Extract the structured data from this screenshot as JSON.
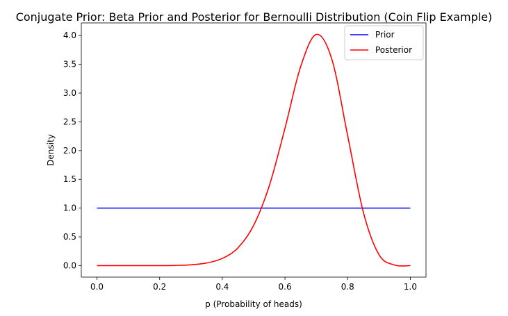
{
  "chart_data": {
    "type": "line",
    "title": "Conjugate Prior: Beta Prior and Posterior for Bernoulli Distribution (Coin Flip Example)",
    "xlabel": "p (Probability of heads)",
    "ylabel": "Density",
    "xlim": [
      -0.05,
      1.05
    ],
    "ylim": [
      -0.2,
      4.22
    ],
    "xticks": [
      0.0,
      0.2,
      0.4,
      0.6,
      0.8,
      1.0
    ],
    "xtick_labels": [
      "0.0",
      "0.2",
      "0.4",
      "0.6",
      "0.8",
      "1.0"
    ],
    "yticks": [
      0.0,
      0.5,
      1.0,
      1.5,
      2.0,
      2.5,
      3.0,
      3.5,
      4.0
    ],
    "ytick_labels": [
      "0.0",
      "0.5",
      "1.0",
      "1.5",
      "2.0",
      "2.5",
      "3.0",
      "3.5",
      "4.0"
    ],
    "grid": false,
    "legend_position": "top-right",
    "series": [
      {
        "name": "Prior",
        "color": "#0000ff",
        "x": [
          0.0,
          1.0
        ],
        "y": [
          1.0,
          1.0
        ]
      },
      {
        "name": "Posterior",
        "color": "#ff0000",
        "x": [
          0.0,
          0.05,
          0.1,
          0.15,
          0.2,
          0.25,
          0.3,
          0.35,
          0.4,
          0.45,
          0.5,
          0.55,
          0.6,
          0.65,
          0.7,
          0.75,
          0.8,
          0.85,
          0.9,
          0.95,
          1.0
        ],
        "y": [
          0.0,
          0.0,
          0.0,
          0.0,
          0.0,
          0.003,
          0.014,
          0.045,
          0.125,
          0.31,
          0.7,
          1.39,
          2.39,
          3.46,
          4.02,
          3.58,
          2.26,
          0.93,
          0.19,
          0.01,
          0.0
        ]
      }
    ]
  }
}
